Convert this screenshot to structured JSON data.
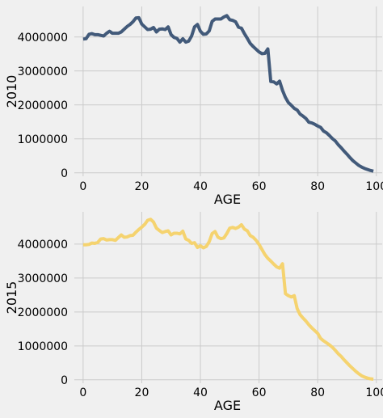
{
  "chart_data": [
    {
      "type": "line",
      "xlabel": "AGE",
      "ylabel": "2010",
      "xlim": [
        -3,
        102
      ],
      "ylim": [
        -100000,
        4900000
      ],
      "xticks": [
        0,
        20,
        40,
        60,
        80,
        100
      ],
      "yticks": [
        0,
        1000000,
        2000000,
        3000000,
        4000000
      ],
      "grid": true,
      "color": "#425a7a",
      "x": [
        0,
        1,
        2,
        3,
        4,
        5,
        6,
        7,
        8,
        9,
        10,
        11,
        12,
        13,
        14,
        15,
        16,
        17,
        18,
        19,
        20,
        21,
        22,
        23,
        24,
        25,
        26,
        27,
        28,
        29,
        30,
        31,
        32,
        33,
        34,
        35,
        36,
        37,
        38,
        39,
        40,
        41,
        42,
        43,
        44,
        45,
        46,
        47,
        48,
        49,
        50,
        51,
        52,
        53,
        54,
        55,
        56,
        57,
        58,
        59,
        60,
        61,
        62,
        63,
        64,
        65,
        66,
        67,
        68,
        69,
        70,
        71,
        72,
        73,
        74,
        75,
        76,
        77,
        78,
        79,
        80,
        81,
        82,
        83,
        84,
        85,
        86,
        87,
        88,
        89,
        90,
        91,
        92,
        93,
        94,
        95,
        96,
        97,
        98,
        99
      ],
      "y": [
        3940000,
        3950000,
        4080000,
        4100000,
        4070000,
        4070000,
        4050000,
        4030000,
        4110000,
        4170000,
        4110000,
        4110000,
        4110000,
        4150000,
        4230000,
        4310000,
        4370000,
        4450000,
        4560000,
        4570000,
        4380000,
        4300000,
        4220000,
        4230000,
        4280000,
        4150000,
        4230000,
        4240000,
        4220000,
        4300000,
        4070000,
        3990000,
        3960000,
        3850000,
        3950000,
        3850000,
        3880000,
        4030000,
        4300000,
        4370000,
        4170000,
        4080000,
        4090000,
        4180000,
        4460000,
        4530000,
        4530000,
        4530000,
        4590000,
        4630000,
        4510000,
        4490000,
        4450000,
        4290000,
        4260000,
        4100000,
        3960000,
        3810000,
        3720000,
        3640000,
        3560000,
        3510000,
        3520000,
        3650000,
        2690000,
        2680000,
        2620000,
        2700000,
        2430000,
        2220000,
        2070000,
        1990000,
        1900000,
        1850000,
        1730000,
        1670000,
        1600000,
        1490000,
        1470000,
        1430000,
        1380000,
        1340000,
        1230000,
        1180000,
        1100000,
        1010000,
        940000,
        830000,
        740000,
        640000,
        550000,
        450000,
        360000,
        290000,
        220000,
        170000,
        130000,
        100000,
        70000,
        50000
      ]
    },
    {
      "type": "line",
      "xlabel": "AGE",
      "ylabel": "2015",
      "xlim": [
        -3,
        102
      ],
      "ylim": [
        -100000,
        4950000
      ],
      "xticks": [
        0,
        20,
        40,
        60,
        80,
        100
      ],
      "yticks": [
        0,
        1000000,
        2000000,
        3000000,
        4000000
      ],
      "grid": true,
      "color": "#f5d36f",
      "x": [
        0,
        1,
        2,
        3,
        4,
        5,
        6,
        7,
        8,
        9,
        10,
        11,
        12,
        13,
        14,
        15,
        16,
        17,
        18,
        19,
        20,
        21,
        22,
        23,
        24,
        25,
        26,
        27,
        28,
        29,
        30,
        31,
        32,
        33,
        34,
        35,
        36,
        37,
        38,
        39,
        40,
        41,
        42,
        43,
        44,
        45,
        46,
        47,
        48,
        49,
        50,
        51,
        52,
        53,
        54,
        55,
        56,
        57,
        58,
        59,
        60,
        61,
        62,
        63,
        64,
        65,
        66,
        67,
        68,
        69,
        70,
        71,
        72,
        73,
        74,
        75,
        76,
        77,
        78,
        79,
        80,
        81,
        82,
        83,
        84,
        85,
        86,
        87,
        88,
        89,
        90,
        91,
        92,
        93,
        94,
        95,
        96,
        97,
        98,
        99
      ],
      "y": [
        3980000,
        3980000,
        3990000,
        4030000,
        4020000,
        4050000,
        4150000,
        4160000,
        4120000,
        4130000,
        4130000,
        4110000,
        4190000,
        4270000,
        4200000,
        4210000,
        4250000,
        4260000,
        4350000,
        4430000,
        4500000,
        4580000,
        4700000,
        4730000,
        4650000,
        4470000,
        4400000,
        4340000,
        4370000,
        4390000,
        4270000,
        4320000,
        4320000,
        4300000,
        4380000,
        4150000,
        4110000,
        4020000,
        4040000,
        3900000,
        3950000,
        3890000,
        3930000,
        4070000,
        4310000,
        4370000,
        4200000,
        4160000,
        4180000,
        4310000,
        4470000,
        4490000,
        4460000,
        4500000,
        4570000,
        4440000,
        4390000,
        4250000,
        4200000,
        4110000,
        3990000,
        3840000,
        3690000,
        3580000,
        3500000,
        3410000,
        3330000,
        3290000,
        3420000,
        2540000,
        2480000,
        2440000,
        2480000,
        2100000,
        1920000,
        1820000,
        1730000,
        1620000,
        1530000,
        1450000,
        1370000,
        1220000,
        1150000,
        1090000,
        1030000,
        960000,
        870000,
        770000,
        690000,
        590000,
        500000,
        410000,
        330000,
        250000,
        180000,
        120000,
        80000,
        50000,
        30000,
        20000
      ]
    }
  ]
}
